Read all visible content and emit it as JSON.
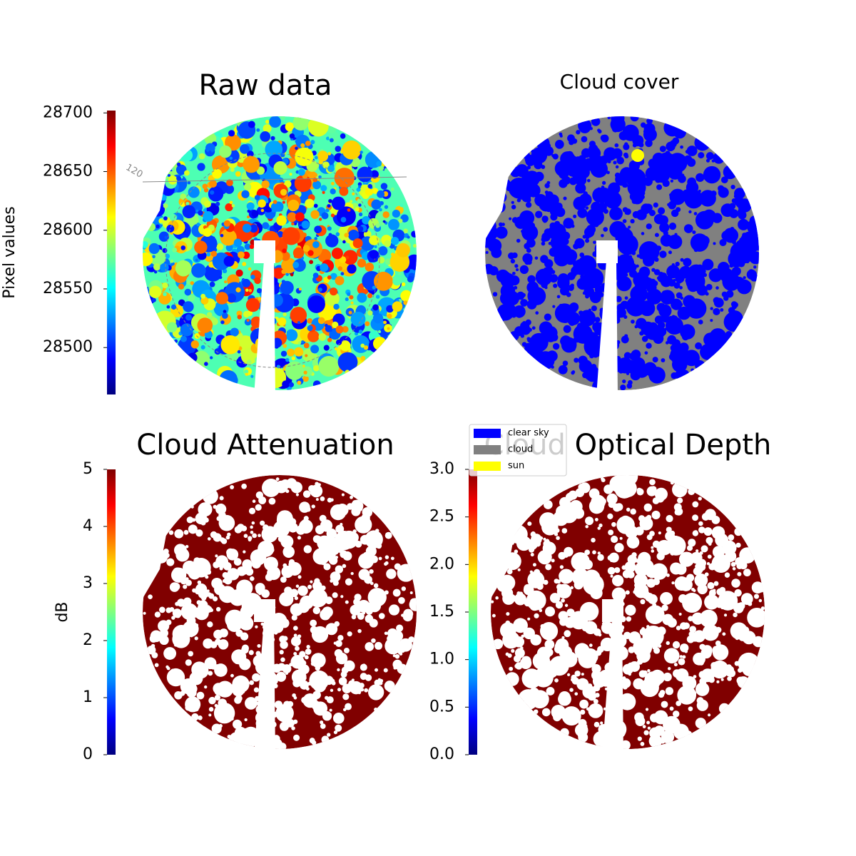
{
  "chart_data": [
    {
      "type": "image",
      "title": "Raw data",
      "colormap": "jet",
      "colorbar": {
        "label": "Pixel values",
        "lim": [
          28460,
          28702
        ],
        "ticks": [
          28500,
          28550,
          28600,
          28650,
          28700
        ]
      },
      "annotations": [
        "120"
      ]
    },
    {
      "type": "categorical-image",
      "title": "Cloud cover",
      "categories": [
        "clear sky",
        "cloud",
        "sun"
      ],
      "colors": [
        "#0000ff",
        "#808080",
        "#ffff00"
      ]
    },
    {
      "type": "image",
      "title": "Cloud Attenuation",
      "colormap": "jet",
      "color": "#800000",
      "colorbar": {
        "label": "dB",
        "lim": [
          0,
          5
        ],
        "ticks": [
          0,
          1,
          2,
          3,
          4,
          5
        ]
      }
    },
    {
      "type": "image",
      "title": "Cloud Optical Depth",
      "colormap": "jet",
      "color": "#800000",
      "colorbar": {
        "lim": [
          0,
          3
        ],
        "ticks": [
          {
            "value": 0,
            "label": "0.0"
          },
          0.5,
          {
            "value": 1,
            "label": "1.0"
          },
          1.5,
          {
            "value": 2,
            "label": "2.0"
          },
          2.5,
          {
            "value": 3,
            "label": "3.0"
          }
        ]
      }
    }
  ]
}
